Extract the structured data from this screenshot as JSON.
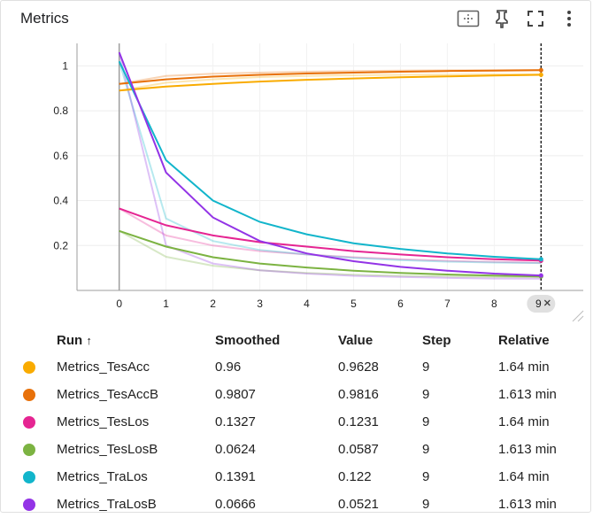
{
  "header": {
    "title": "Metrics"
  },
  "toolbar": {
    "icons": [
      "fit-domain-icon",
      "pin-icon",
      "fullscreen-icon",
      "more-vert-icon"
    ]
  },
  "chart_data": {
    "type": "line",
    "x": [
      0,
      1,
      2,
      3,
      4,
      5,
      6,
      7,
      8,
      9
    ],
    "x_ticks": [
      "0",
      "1",
      "2",
      "3",
      "4",
      "5",
      "6",
      "7",
      "8"
    ],
    "y_ticks": [
      "1",
      "0.8",
      "0.6",
      "0.4",
      "0.2"
    ],
    "xlim": [
      -0.9,
      9.9
    ],
    "ylim": [
      0,
      1.1
    ],
    "hover_x_label": "9",
    "series": [
      {
        "name": "Metrics_TesAcc",
        "color": "#f9ab00",
        "smoothed": [
          0.89,
          0.908,
          0.92,
          0.93,
          0.938,
          0.944,
          0.949,
          0.953,
          0.957,
          0.96
        ],
        "raw": [
          0.89,
          0.925,
          0.94,
          0.95,
          0.955,
          0.958,
          0.96,
          0.961,
          0.962,
          0.9628
        ]
      },
      {
        "name": "Metrics_TesAccB",
        "color": "#e8710a",
        "smoothed": [
          0.92,
          0.94,
          0.952,
          0.96,
          0.966,
          0.97,
          0.974,
          0.977,
          0.979,
          0.9807
        ],
        "raw": [
          0.92,
          0.955,
          0.965,
          0.97,
          0.974,
          0.977,
          0.979,
          0.98,
          0.981,
          0.9816
        ]
      },
      {
        "name": "Metrics_TesLos",
        "color": "#e52592",
        "smoothed": [
          0.365,
          0.29,
          0.245,
          0.215,
          0.195,
          0.175,
          0.16,
          0.148,
          0.139,
          0.1327
        ],
        "raw": [
          0.365,
          0.245,
          0.2,
          0.175,
          0.16,
          0.148,
          0.139,
          0.132,
          0.127,
          0.1231
        ]
      },
      {
        "name": "Metrics_TesLosB",
        "color": "#7cb342",
        "smoothed": [
          0.265,
          0.195,
          0.148,
          0.12,
          0.102,
          0.088,
          0.078,
          0.071,
          0.066,
          0.0624
        ],
        "raw": [
          0.265,
          0.15,
          0.11,
          0.09,
          0.078,
          0.07,
          0.065,
          0.062,
          0.06,
          0.0587
        ]
      },
      {
        "name": "Metrics_TraLos",
        "color": "#12b5cb",
        "smoothed": [
          1.02,
          0.58,
          0.4,
          0.305,
          0.25,
          0.21,
          0.185,
          0.165,
          0.15,
          0.1391
        ],
        "raw": [
          1.02,
          0.32,
          0.22,
          0.18,
          0.16,
          0.145,
          0.135,
          0.128,
          0.124,
          0.122
        ]
      },
      {
        "name": "Metrics_TraLosB",
        "color": "#9334e6",
        "smoothed": [
          1.06,
          0.525,
          0.325,
          0.22,
          0.165,
          0.13,
          0.105,
          0.088,
          0.075,
          0.0666
        ],
        "raw": [
          1.06,
          0.2,
          0.12,
          0.09,
          0.075,
          0.065,
          0.06,
          0.056,
          0.053,
          0.0521
        ]
      }
    ]
  },
  "table": {
    "headers": {
      "run": "Run",
      "sort_arrow": "↑",
      "smoothed": "Smoothed",
      "value": "Value",
      "step": "Step",
      "relative": "Relative"
    },
    "rows": [
      {
        "run": "Metrics_TesAcc",
        "smoothed": "0.96",
        "value": "0.9628",
        "step": "9",
        "relative": "1.64 min",
        "color": "#f9ab00"
      },
      {
        "run": "Metrics_TesAccB",
        "smoothed": "0.9807",
        "value": "0.9816",
        "step": "9",
        "relative": "1.613 min",
        "color": "#e8710a"
      },
      {
        "run": "Metrics_TesLos",
        "smoothed": "0.1327",
        "value": "0.1231",
        "step": "9",
        "relative": "1.64 min",
        "color": "#e52592"
      },
      {
        "run": "Metrics_TesLosB",
        "smoothed": "0.0624",
        "value": "0.0587",
        "step": "9",
        "relative": "1.613 min",
        "color": "#7cb342"
      },
      {
        "run": "Metrics_TraLos",
        "smoothed": "0.1391",
        "value": "0.122",
        "step": "9",
        "relative": "1.64 min",
        "color": "#12b5cb"
      },
      {
        "run": "Metrics_TraLosB",
        "smoothed": "0.0666",
        "value": "0.0521",
        "step": "9",
        "relative": "1.613 min",
        "color": "#9334e6"
      }
    ]
  }
}
